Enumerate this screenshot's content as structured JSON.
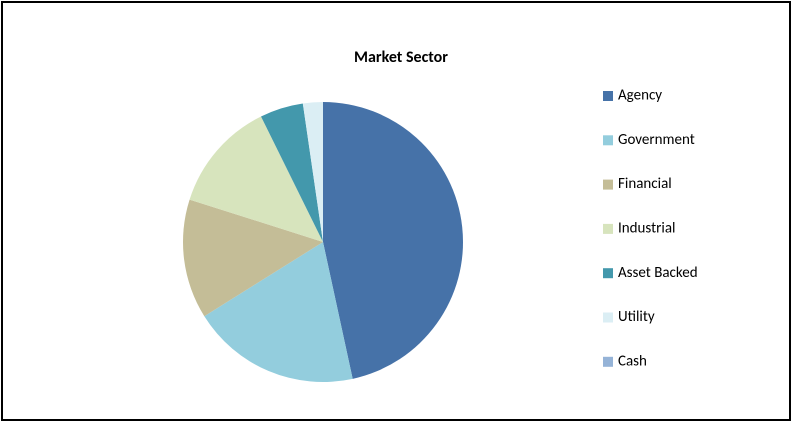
{
  "chart_data": {
    "type": "pie",
    "title": "Market Sector",
    "categories": [
      "Agency",
      "Government",
      "Financial",
      "Industrial",
      "Asset Backed",
      "Utility",
      "Cash"
    ],
    "values": [
      46.6,
      19.5,
      13.8,
      12.8,
      5.0,
      2.3,
      0
    ],
    "colors": [
      "#4672a8",
      "#93cddd",
      "#c4bd97",
      "#d7e4bd",
      "#4398ac",
      "#dbeef4",
      "#95b3d7"
    ],
    "legend": "right"
  }
}
